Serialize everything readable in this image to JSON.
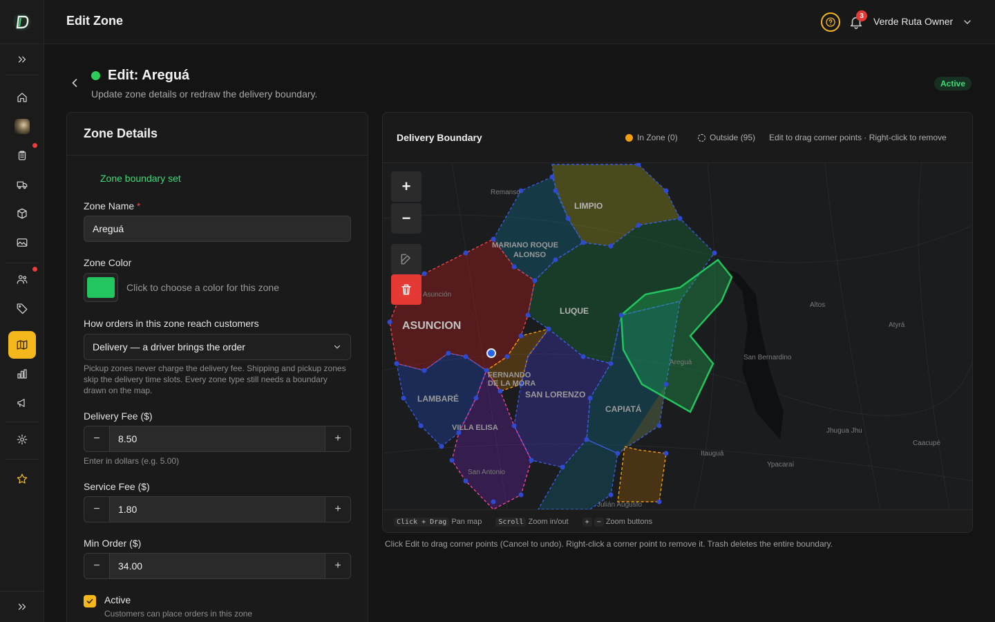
{
  "topbar": {
    "title": "Edit Zone",
    "notification_count": "3",
    "user_name": "Verde Ruta Owner"
  },
  "sidebar": {
    "items": [
      {
        "name": "home",
        "icon": "home-icon"
      },
      {
        "name": "store",
        "icon": "store-thumbnail"
      },
      {
        "name": "orders",
        "icon": "clipboard-icon",
        "alert": true
      },
      {
        "name": "delivery",
        "icon": "truck-icon"
      },
      {
        "name": "products",
        "icon": "box-icon"
      },
      {
        "name": "media",
        "icon": "image-icon"
      },
      {
        "name": "customers",
        "icon": "users-icon",
        "alert": true
      },
      {
        "name": "promotions",
        "icon": "tag-icon"
      },
      {
        "name": "zones",
        "icon": "map-icon",
        "active": true
      },
      {
        "name": "analytics",
        "icon": "bar-chart-icon"
      },
      {
        "name": "marketing",
        "icon": "megaphone-icon"
      },
      {
        "name": "settings",
        "icon": "gear-icon"
      },
      {
        "name": "favorites",
        "icon": "star-icon"
      }
    ],
    "accent": "#f5b81c"
  },
  "page": {
    "title": "Edit: Areguá",
    "subtitle": "Update zone details or redraw the delivery boundary.",
    "status_badge": "Active",
    "status_color": "#2ecc5a"
  },
  "form": {
    "card_title": "Zone Details",
    "boundary_note": "Zone boundary set",
    "zone_name_label": "Zone Name",
    "zone_name_required": "*",
    "zone_name_value": "Areguá",
    "zone_color_label": "Zone Color",
    "zone_color_value": "#22c55e",
    "zone_color_hint": "Click to choose a color for this zone",
    "fulfillment_label": "How orders in this zone reach customers",
    "fulfillment_value": "Delivery — a driver brings the order",
    "fulfillment_help": "Pickup zones never charge the delivery fee. Shipping and pickup zones skip the delivery time slots. Every zone type still needs a boundary drawn on the map.",
    "delivery_fee_label": "Delivery Fee ($)",
    "delivery_fee_value": "8.50",
    "delivery_fee_help": "Enter in dollars (e.g. 5.00)",
    "service_fee_label": "Service Fee ($)",
    "service_fee_value": "1.80",
    "min_order_label": "Min Order ($)",
    "min_order_value": "34.00",
    "active_label": "Active",
    "active_help": "Customers can place orders in this zone",
    "minus": "−",
    "plus": "+"
  },
  "map": {
    "title": "Delivery Boundary",
    "in_zone": "In Zone (0)",
    "outside": "Outside (95)",
    "edit_hint": "Edit to drag corner points · Right-click to remove",
    "zoom_in": "+",
    "zoom_out": "−",
    "footer": {
      "k1": "Click + Drag",
      "t1": "Pan map",
      "k2": "Scroll",
      "t2": "Zoom in/out",
      "k3a": "+",
      "k3b": "−",
      "t3": "Zoom buttons"
    },
    "caption": "Click Edit to drag corner points (Cancel to undo). Right-click a corner point to remove it. Trash deletes the entire boundary.",
    "labels": {
      "remanso": "Remanso",
      "limpio": "LIMPIO",
      "mariano1": "MARIANO ROQUE",
      "mariano2": "ALONSO",
      "asuncion_small": "Asunción",
      "asuncion": "ASUNCION",
      "luque": "LUQUE",
      "altos": "Altos",
      "atyra": "Atyrá",
      "aregua": "Areguá",
      "san_bernardino": "San Bernardino",
      "fernando1": "FERNANDO",
      "fernando2": "DE LA MORA",
      "san_lorenzo": "SAN LORENZO",
      "lambare": "LAMBARÉ",
      "capiata": "CAPIATÁ",
      "villa_elisa": "VILLA ELISA",
      "jhugua": "Jhugua Jhu",
      "caacupe": "Caacupé",
      "itaugua": "Itauguá",
      "ypacarai": "Ypacaraí",
      "san_antonio": "San Antonio",
      "julian": "Julián Augusto"
    },
    "zone_colors": {
      "in_zone": "#f59e0b",
      "aregua": "#22c55e",
      "asuncion": "#b91c1c",
      "limpio": "#a3a31c",
      "luque": "#15803d",
      "lambare": "#1d4ed8",
      "fernando": "#a16207",
      "san_lorenzo": "#4338ca",
      "capiata": "#0e7490"
    }
  }
}
